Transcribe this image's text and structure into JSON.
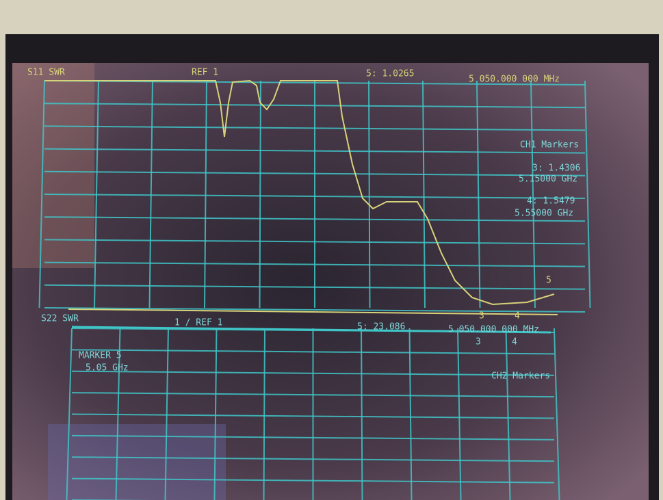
{
  "screen": {
    "ch1": {
      "header_left": "S11 SWR",
      "header_ref": "REF 1",
      "marker_readout": "5: 1.0265",
      "frequency": "5 050.000 000 MHz",
      "markers_title": "CH1 Markers",
      "markers": [
        {
          "value": "3: 1.4306",
          "freq": "5.15000 GHz"
        },
        {
          "value": "4: 1.5479",
          "freq": "5.55000 GHz"
        }
      ],
      "marker_flags": [
        "3",
        "4",
        "5"
      ]
    },
    "ch2": {
      "header_left": "S22 SWR",
      "header_ref": "1 / REF 1",
      "marker_readout": "5: 23.086",
      "frequency": "5 050.000 000 MHz",
      "marker_label": "MARKER 5",
      "marker_freq": "5.05 GHz",
      "markers_title": "CH2 Markers",
      "marker_flags": [
        "3",
        "4"
      ]
    }
  }
}
